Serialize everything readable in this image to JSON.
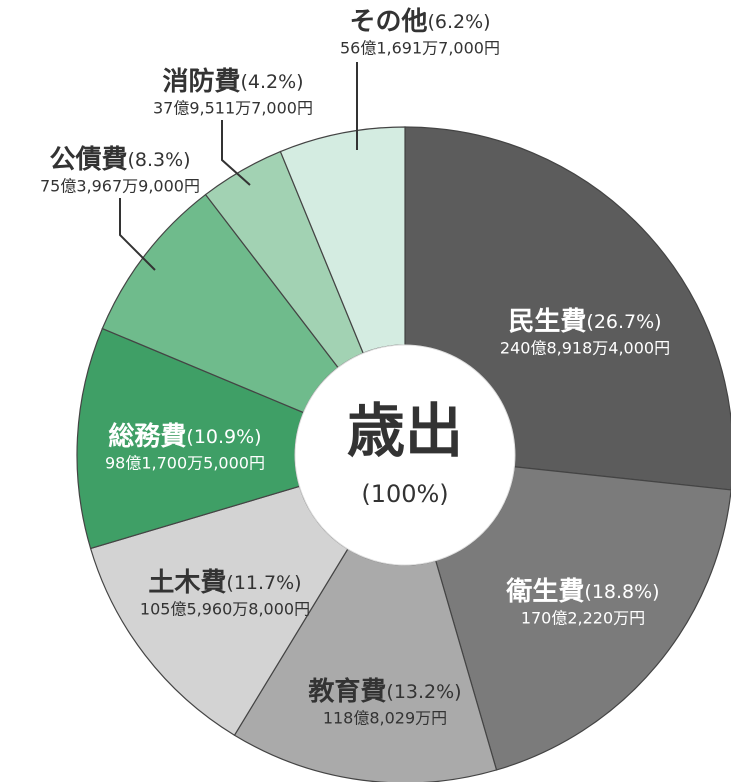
{
  "chart_data": {
    "type": "donut",
    "center_title": "歳出",
    "center_label": "(100%)",
    "categories": [
      "民生費",
      "衛生費",
      "教育費",
      "土木費",
      "総務費",
      "公債費",
      "消防費",
      "その他"
    ],
    "values": [
      26.7,
      18.8,
      13.2,
      11.7,
      10.9,
      8.3,
      4.2,
      6.2
    ],
    "value_labels": [
      "(26.7%)",
      "(18.8%)",
      "(13.2%)",
      "(11.7%)",
      "(10.9%)",
      "(8.3%)",
      "(4.2%)",
      "(6.2%)"
    ],
    "amounts": [
      "240億8,918万4,000円",
      "170億2,220万円",
      "118億8,029万円",
      "105億5,960万8,000円",
      "98億1,700万5,000円",
      "75億3,967万9,000円",
      "37億9,511万7,000円",
      "56億1,691万7,000円"
    ],
    "colors": [
      "#5c5c5c",
      "#7b7b7b",
      "#aaaaaa",
      "#d3d3d3",
      "#3f9f66",
      "#6fbb8c",
      "#a2d2b3",
      "#d4ece1"
    ]
  }
}
